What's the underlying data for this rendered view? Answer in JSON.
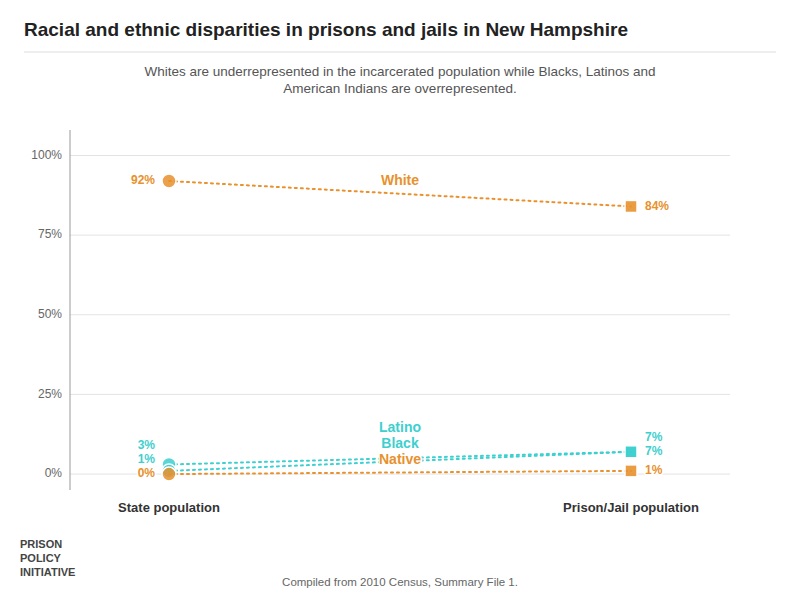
{
  "chart_data": {
    "type": "slope",
    "title": "Racial and ethnic disparities in prisons and jails in New Hampshire",
    "subtitle": "Whites are underrepresented in the incarcerated population while Blacks, Latinos and\nAmerican Indians are overrepresented.",
    "categories": [
      "State population",
      "Prison/Jail population"
    ],
    "series": [
      {
        "name": "White",
        "color": "#e8912d",
        "values": [
          92,
          84
        ],
        "value_labels": [
          "92%",
          "84%"
        ],
        "line_style": "dotted"
      },
      {
        "name": "Latino",
        "color": "#3ecfcf",
        "values": [
          3,
          7
        ],
        "value_labels": [
          "3%",
          "7%"
        ],
        "line_style": "dotted"
      },
      {
        "name": "Black",
        "color": "#3ecfcf",
        "values": [
          1,
          7
        ],
        "value_labels": [
          "1%",
          "7%"
        ],
        "line_style": "dotted"
      },
      {
        "name": "Native",
        "color": "#e8912d",
        "values": [
          0,
          1
        ],
        "value_labels": [
          "0%",
          "1%"
        ],
        "line_style": "dotted"
      }
    ],
    "ylim": [
      -5,
      108
    ],
    "yticks": [
      {
        "value": 0,
        "label": "0%"
      },
      {
        "value": 25,
        "label": "25%"
      },
      {
        "value": 50,
        "label": "50%"
      },
      {
        "value": 75,
        "label": "75%"
      },
      {
        "value": 100,
        "label": "100%"
      }
    ],
    "grid": true,
    "data_labels": true,
    "annotations": [
      "Compiled from 2010 Census, Summary File 1.",
      "PRISON\nPOLICY\nINITIATIVE"
    ]
  }
}
